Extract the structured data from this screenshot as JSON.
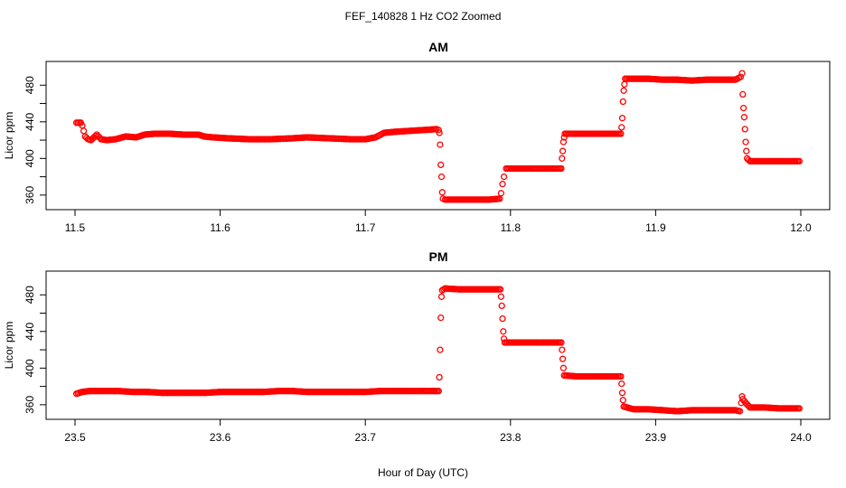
{
  "title": "FEF_140828  1 Hz CO2 Zoomed",
  "xlabel": "Hour of Day (UTC)",
  "colors": {
    "points": "#ff0000",
    "axes": "#000000",
    "background": "#ffffff"
  },
  "chart_data": [
    {
      "type": "scatter",
      "title": "AM",
      "xlabel": "Hour of Day (UTC)",
      "ylabel": "Licor ppm",
      "xlim": [
        11.5,
        12.0
      ],
      "ylim": [
        350,
        500
      ],
      "xticks": [
        "11.5",
        "11.6",
        "11.7",
        "11.8",
        "11.9",
        "12.0"
      ],
      "yticks": [
        "360",
        "400",
        "440",
        "480"
      ],
      "marker": "open circle",
      "series": [
        {
          "points": [
            [
              11.501,
              439
            ],
            [
              11.503,
              439
            ],
            [
              11.504,
              439
            ],
            [
              11.505,
              436
            ],
            [
              11.506,
              430
            ],
            [
              11.507,
              424
            ],
            [
              11.509,
              421
            ],
            [
              11.511,
              420
            ],
            [
              11.513,
              423
            ],
            [
              11.515,
              426
            ],
            [
              11.518,
              421
            ],
            [
              11.522,
              420
            ],
            [
              11.528,
              421
            ],
            [
              11.535,
              424
            ],
            [
              11.542,
              423
            ],
            [
              11.548,
              426
            ],
            [
              11.555,
              427
            ],
            [
              11.565,
              427
            ],
            [
              11.575,
              426
            ],
            [
              11.585,
              426
            ],
            [
              11.589,
              424
            ],
            [
              11.595,
              423
            ],
            [
              11.605,
              422
            ],
            [
              11.62,
              421
            ],
            [
              11.635,
              421
            ],
            [
              11.65,
              422
            ],
            [
              11.66,
              423
            ],
            [
              11.675,
              422
            ],
            [
              11.69,
              421
            ],
            [
              11.7,
              421
            ],
            [
              11.707,
              423
            ],
            [
              11.713,
              428
            ],
            [
              11.72,
              429
            ],
            [
              11.73,
              430
            ],
            [
              11.74,
              431
            ],
            [
              11.749,
              432
            ],
            [
              11.7505,
              431
            ],
            [
              11.751,
              428
            ],
            [
              11.7515,
              415
            ],
            [
              11.752,
              393
            ],
            [
              11.7525,
              380
            ],
            [
              11.753,
              363
            ],
            [
              11.7535,
              356
            ],
            [
              11.755,
              355
            ],
            [
              11.765,
              355
            ],
            [
              11.775,
              355
            ],
            [
              11.785,
              355
            ],
            [
              11.7925,
              356
            ],
            [
              11.7935,
              362
            ],
            [
              11.7945,
              372
            ],
            [
              11.7955,
              380
            ],
            [
              11.797,
              389
            ],
            [
              11.805,
              389
            ],
            [
              11.815,
              389
            ],
            [
              11.8255,
              389
            ],
            [
              11.835,
              389
            ],
            [
              11.8355,
              400
            ],
            [
              11.836,
              408
            ],
            [
              11.8365,
              418
            ],
            [
              11.837,
              423
            ],
            [
              11.8375,
              427
            ],
            [
              11.845,
              427
            ],
            [
              11.855,
              427
            ],
            [
              11.865,
              427
            ],
            [
              11.876,
              427
            ],
            [
              11.8765,
              434
            ],
            [
              11.877,
              444
            ],
            [
              11.8775,
              462
            ],
            [
              11.878,
              474
            ],
            [
              11.8785,
              481
            ],
            [
              11.879,
              487
            ],
            [
              11.885,
              487
            ],
            [
              11.895,
              487
            ],
            [
              11.905,
              486
            ],
            [
              11.915,
              486
            ],
            [
              11.925,
              485
            ],
            [
              11.935,
              486
            ],
            [
              11.945,
              486
            ],
            [
              11.955,
              486
            ],
            [
              11.9585,
              489
            ],
            [
              11.9595,
              493
            ],
            [
              11.96,
              470
            ],
            [
              11.9605,
              455
            ],
            [
              11.961,
              445
            ],
            [
              11.9615,
              432
            ],
            [
              11.962,
              418
            ],
            [
              11.9625,
              408
            ],
            [
              11.963,
              400
            ],
            [
              11.965,
              397
            ],
            [
              11.975,
              397
            ],
            [
              11.985,
              397
            ],
            [
              11.999,
              397
            ]
          ]
        }
      ]
    },
    {
      "type": "scatter",
      "title": "PM",
      "xlabel": "Hour of Day (UTC)",
      "ylabel": "Licor ppm",
      "xlim": [
        23.5,
        24.0
      ],
      "ylim": [
        350,
        500
      ],
      "xticks": [
        "23.5",
        "23.6",
        "23.7",
        "23.8",
        "23.9",
        "24.0"
      ],
      "yticks": [
        "360",
        "400",
        "440",
        "480"
      ],
      "marker": "open circle",
      "series": [
        {
          "points": [
            [
              23.501,
              372
            ],
            [
              23.505,
              374
            ],
            [
              23.51,
              375
            ],
            [
              23.52,
              375
            ],
            [
              23.53,
              375
            ],
            [
              23.54,
              374
            ],
            [
              23.55,
              374
            ],
            [
              23.56,
              373
            ],
            [
              23.57,
              373
            ],
            [
              23.58,
              373
            ],
            [
              23.59,
              373
            ],
            [
              23.6,
              374
            ],
            [
              23.61,
              374
            ],
            [
              23.62,
              374
            ],
            [
              23.63,
              374
            ],
            [
              23.64,
              375
            ],
            [
              23.65,
              375
            ],
            [
              23.66,
              374
            ],
            [
              23.67,
              374
            ],
            [
              23.68,
              374
            ],
            [
              23.69,
              374
            ],
            [
              23.7,
              374
            ],
            [
              23.71,
              375
            ],
            [
              23.72,
              375
            ],
            [
              23.73,
              375
            ],
            [
              23.74,
              375
            ],
            [
              23.7505,
              375
            ],
            [
              23.751,
              390
            ],
            [
              23.7515,
              420
            ],
            [
              23.752,
              455
            ],
            [
              23.7525,
              478
            ],
            [
              23.753,
              485
            ],
            [
              23.755,
              487
            ],
            [
              23.765,
              486
            ],
            [
              23.775,
              486
            ],
            [
              23.785,
              486
            ],
            [
              23.793,
              486
            ],
            [
              23.7935,
              478
            ],
            [
              23.794,
              468
            ],
            [
              23.7945,
              454
            ],
            [
              23.795,
              440
            ],
            [
              23.7955,
              432
            ],
            [
              23.796,
              428
            ],
            [
              23.805,
              428
            ],
            [
              23.815,
              428
            ],
            [
              23.825,
              428
            ],
            [
              23.835,
              428
            ],
            [
              23.8355,
              420
            ],
            [
              23.836,
              410
            ],
            [
              23.8365,
              400
            ],
            [
              23.837,
              392
            ],
            [
              23.845,
              391
            ],
            [
              23.855,
              391
            ],
            [
              23.865,
              391
            ],
            [
              23.876,
              391
            ],
            [
              23.8765,
              383
            ],
            [
              23.877,
              373
            ],
            [
              23.8775,
              365
            ],
            [
              23.878,
              358
            ],
            [
              23.885,
              355
            ],
            [
              23.895,
              355
            ],
            [
              23.905,
              354
            ],
            [
              23.915,
              353
            ],
            [
              23.925,
              354
            ],
            [
              23.935,
              354
            ],
            [
              23.945,
              354
            ],
            [
              23.955,
              354
            ],
            [
              23.958,
              353
            ],
            [
              23.959,
              362
            ],
            [
              23.9595,
              369
            ],
            [
              23.96,
              366
            ],
            [
              23.962,
              362
            ],
            [
              23.965,
              357
            ],
            [
              23.975,
              357
            ],
            [
              23.985,
              356
            ],
            [
              23.999,
              356
            ]
          ]
        }
      ]
    }
  ]
}
